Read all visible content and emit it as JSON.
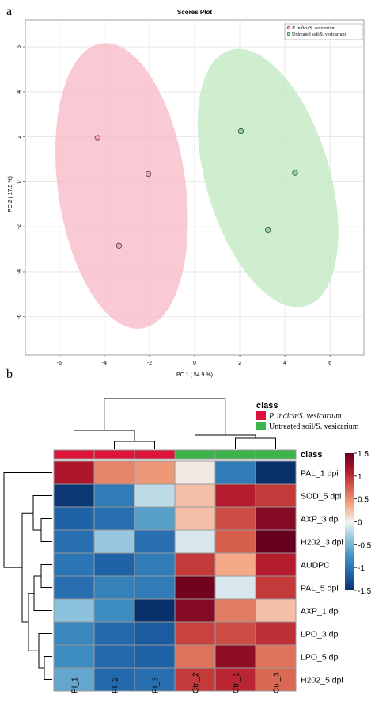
{
  "panel_a_letter": "a",
  "panel_b_letter": "b",
  "chart_data": [
    {
      "type": "scatter",
      "title": "Scores Plot",
      "xlabel": "PC 1 ( 54.9 %)",
      "ylabel": "PC 2 ( 17.5 %)",
      "xlim": [
        -7.5,
        7.5
      ],
      "ylim": [
        -7.7,
        7.2
      ],
      "xticks": [
        -6,
        -4,
        -2,
        0,
        2,
        4,
        6
      ],
      "yticks": [
        -6,
        -4,
        -2,
        0,
        2,
        4,
        6
      ],
      "grid": true,
      "legend_position": "top-right",
      "series": [
        {
          "name": "P. indica/S. vesicarium",
          "color": "#f4a3b4",
          "ellipse_color": "#f7b8c4",
          "points": [
            {
              "x": -4.3,
              "y": 1.95
            },
            {
              "x": -2.05,
              "y": 0.35
            },
            {
              "x": -3.35,
              "y": -2.85
            }
          ]
        },
        {
          "name": "Untreated soil/S. vesicarium",
          "color": "#8fd694",
          "ellipse_color": "#bfe8c0",
          "points": [
            {
              "x": 2.05,
              "y": 2.25
            },
            {
              "x": 4.45,
              "y": 0.4
            },
            {
              "x": 3.25,
              "y": -2.15
            }
          ]
        }
      ]
    },
    {
      "type": "heatmap",
      "columns": [
        "PI_1",
        "PI_2",
        "PI_3",
        "Ctrl_2",
        "Ctrl_1",
        "Ctrl_3"
      ],
      "rows": [
        "PAL_1 dpi",
        "SOD_5 dpi",
        "AXP_3 dpi",
        "H202_3 dpi",
        "AUDPC",
        "PAL_5 dpi",
        "AXP_1 dpi",
        "LPO_3 dpi",
        "LPO_5 dpi",
        "H202_5 dpi"
      ],
      "values": [
        [
          1.15,
          0.55,
          0.45,
          0.05,
          -0.95,
          -1.55
        ],
        [
          -1.45,
          -0.95,
          -0.2,
          0.25,
          1.1,
          0.95
        ],
        [
          -1.15,
          -1.05,
          -0.65,
          0.25,
          0.85,
          1.35
        ],
        [
          -1.05,
          -0.35,
          -1.05,
          -0.1,
          0.75,
          1.55
        ],
        [
          -1.0,
          -1.15,
          -0.95,
          0.95,
          0.35,
          1.1
        ],
        [
          -1.05,
          -0.9,
          -0.95,
          1.45,
          -0.1,
          0.95
        ],
        [
          -0.4,
          -0.8,
          -1.5,
          1.35,
          0.6,
          0.25
        ],
        [
          -0.85,
          -1.1,
          -1.2,
          0.9,
          0.85,
          1.0
        ],
        [
          -0.8,
          -1.1,
          -1.15,
          0.65,
          1.3,
          0.65
        ],
        [
          -0.6,
          -1.1,
          -1.05,
          0.95,
          1.05,
          0.7
        ]
      ],
      "col_class": [
        "P. indica/S. vesicarium",
        "P. indica/S. vesicarium",
        "P. indica/S. vesicarium",
        "Untreated soil/S. vesicarium",
        "Untreated soil/S. vesicarium",
        "Untreated soil/S. vesicarium"
      ],
      "class_label": "class",
      "legend_title": "class",
      "legend": [
        {
          "name": "P. indica/S. vesicarium",
          "color": "#dc143c"
        },
        {
          "name": "Untreated soil/S. vesicarium",
          "color": "#3cb44b"
        }
      ],
      "color_scale": {
        "min": -1.5,
        "max": 1.5,
        "ticks": [
          1.5,
          1,
          0.5,
          0,
          -0.5,
          -1,
          -1.5
        ],
        "stops": [
          "#08306b",
          "#2166ac",
          "#4393c3",
          "#92c5de",
          "#f2f2f2",
          "#f4a582",
          "#d6604d",
          "#b2182b",
          "#67001f"
        ]
      }
    }
  ]
}
